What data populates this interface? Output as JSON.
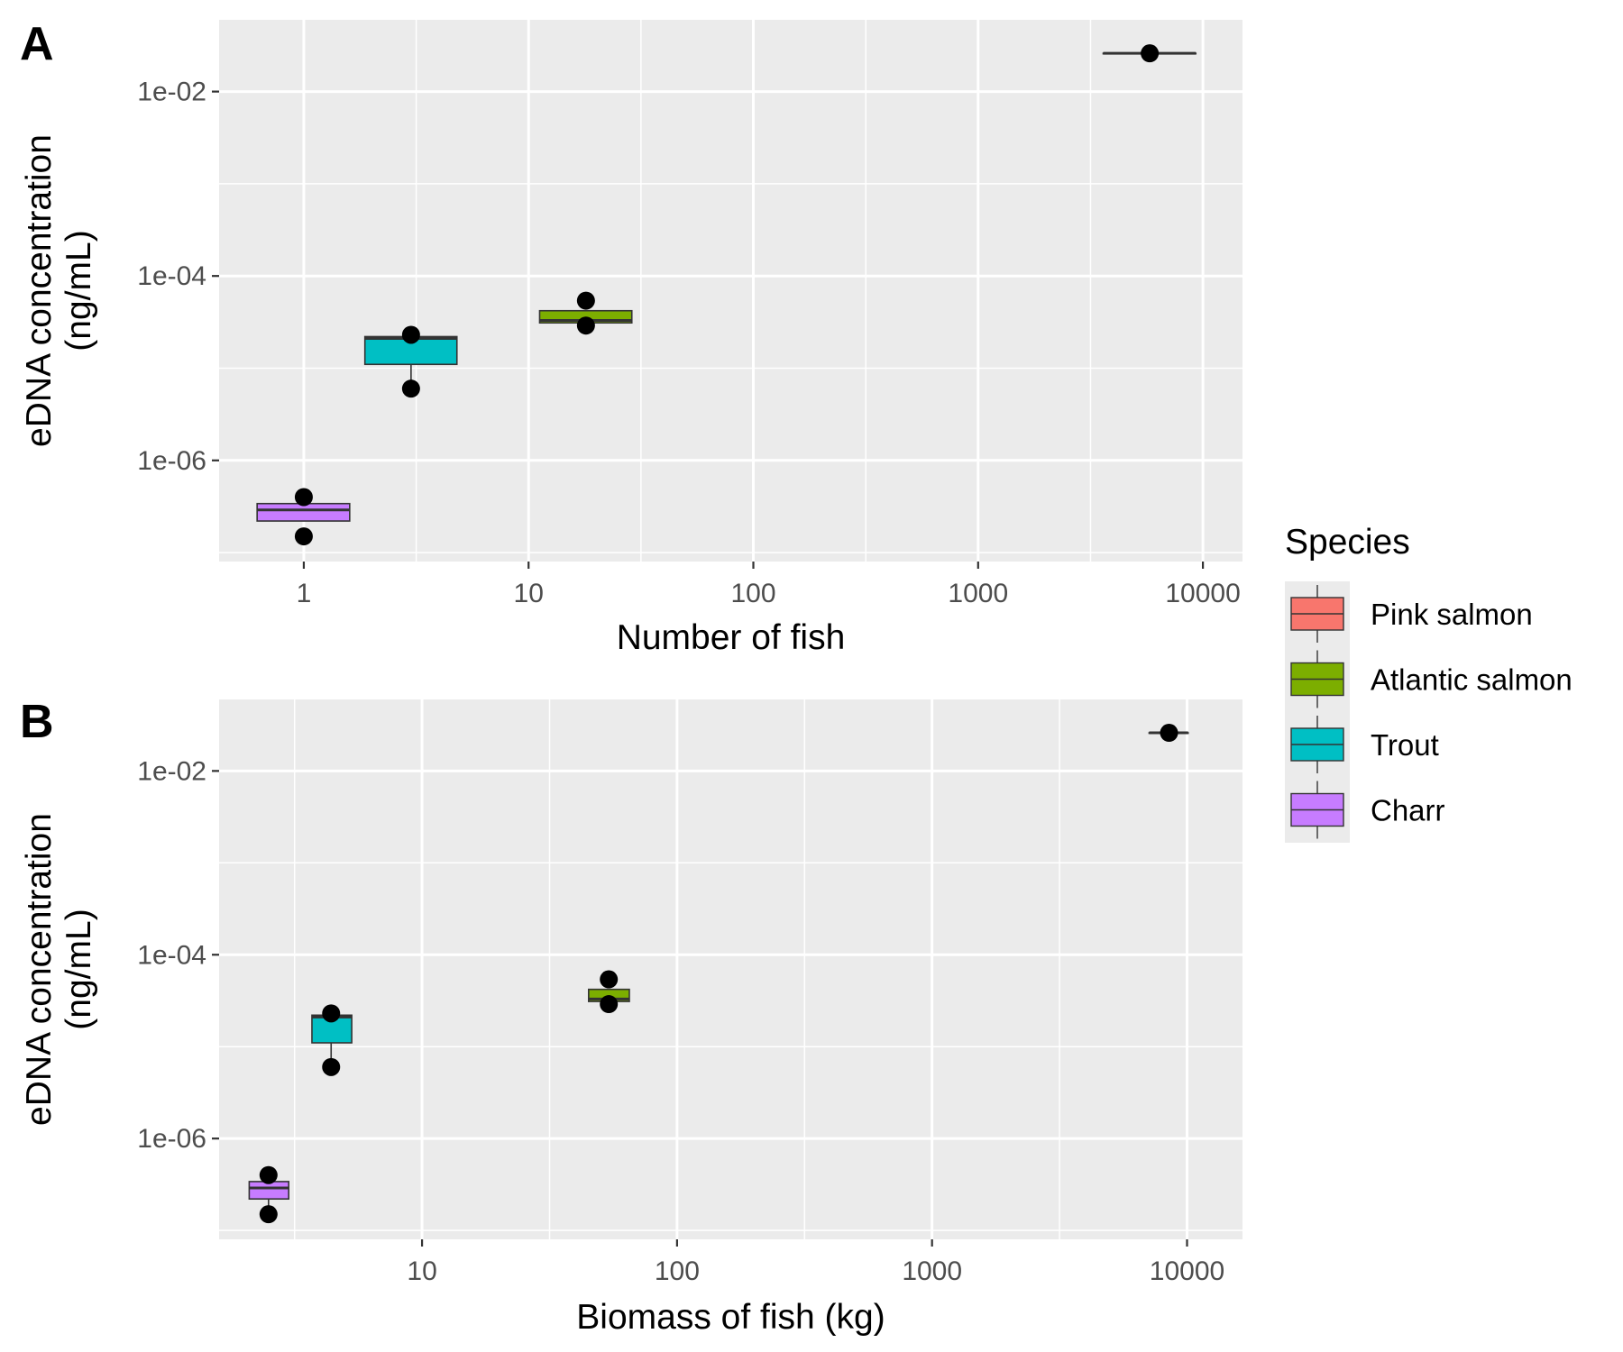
{
  "legend": {
    "title": "Species",
    "colors": {
      "Pink salmon": "#F8766D",
      "Atlantic salmon": "#7CAE00",
      "Trout": "#00BFC4",
      "Charr": "#C77CFF"
    }
  },
  "chart_data": [
    {
      "type": "box",
      "panel_label": "A",
      "xlabel": "Number of fish",
      "ylabel": [
        "eDNA concentration",
        "(ng/mL)"
      ],
      "x_scale": "log10",
      "y_scale": "log10",
      "xlim": [
        0.42,
        15000
      ],
      "ylim": [
        8e-08,
        0.06
      ],
      "x_ticks": [
        {
          "value": 1,
          "label": "1"
        },
        {
          "value": 10,
          "label": "10"
        },
        {
          "value": 100,
          "label": "100"
        },
        {
          "value": 1000,
          "label": "1000"
        },
        {
          "value": 10000,
          "label": "10000"
        }
      ],
      "y_ticks": [
        {
          "value": 1e-06,
          "label": "1e-06"
        },
        {
          "value": 0.0001,
          "label": "1e-04"
        },
        {
          "value": 0.01,
          "label": "1e-02"
        }
      ],
      "grid": true,
      "series": [
        {
          "name": "Charr",
          "x": 1,
          "x_extent": [
            0.62,
            1.6
          ],
          "q1": 2.2e-07,
          "median": 2.9e-07,
          "q3": 3.4e-07,
          "whisker_low": 2.2e-07,
          "whisker_high": 3.4e-07,
          "points": [
            4e-07,
            1.5e-07
          ]
        },
        {
          "name": "Trout",
          "x": 3,
          "x_extent": [
            1.87,
            4.8
          ],
          "q1": 1.1e-05,
          "median": 2.1e-05,
          "q3": 2.2e-05,
          "whisker_low": 6.2e-06,
          "whisker_high": 2.2e-05,
          "points": [
            2.3e-05,
            6e-06
          ]
        },
        {
          "name": "Atlantic salmon",
          "x": 18,
          "x_extent": [
            11.2,
            28.8
          ],
          "q1": 3.1e-05,
          "median": 3.3e-05,
          "q3": 4.2e-05,
          "whisker_low": 3.1e-05,
          "whisker_high": 4.2e-05,
          "points": [
            5.4e-05,
            2.9e-05
          ]
        },
        {
          "name": "Pink salmon",
          "x": 5800,
          "x_extent": [
            3600,
            9300
          ],
          "q1": 0.026,
          "median": 0.026,
          "q3": 0.026,
          "whisker_low": 0.026,
          "whisker_high": 0.026,
          "points": [
            0.026
          ]
        }
      ]
    },
    {
      "type": "box",
      "panel_label": "B",
      "xlabel": "Biomass of fish (kg)",
      "ylabel": [
        "eDNA concentration",
        "(ng/mL)"
      ],
      "x_scale": "log10",
      "y_scale": "log10",
      "xlim": [
        1.6,
        16500
      ],
      "ylim": [
        8e-08,
        0.06
      ],
      "x_ticks": [
        {
          "value": 10,
          "label": "10"
        },
        {
          "value": 100,
          "label": "100"
        },
        {
          "value": 1000,
          "label": "1000"
        },
        {
          "value": 10000,
          "label": "10000"
        }
      ],
      "y_ticks": [
        {
          "value": 1e-06,
          "label": "1e-06"
        },
        {
          "value": 0.0001,
          "label": "1e-04"
        },
        {
          "value": 0.01,
          "label": "1e-02"
        }
      ],
      "grid": true,
      "series": [
        {
          "name": "Charr",
          "x": 2.5,
          "x_extent": [
            2.1,
            3.0
          ],
          "q1": 2.2e-07,
          "median": 2.9e-07,
          "q3": 3.4e-07,
          "whisker_low": 1.8e-07,
          "whisker_high": 3.4e-07,
          "points": [
            4e-07,
            1.5e-07
          ]
        },
        {
          "name": "Trout",
          "x": 4.4,
          "x_extent": [
            3.7,
            5.3
          ],
          "q1": 1.1e-05,
          "median": 2.1e-05,
          "q3": 2.2e-05,
          "whisker_low": 6.2e-06,
          "whisker_high": 2.2e-05,
          "points": [
            2.3e-05,
            6e-06
          ]
        },
        {
          "name": "Atlantic salmon",
          "x": 54,
          "x_extent": [
            45,
            65
          ],
          "q1": 3.1e-05,
          "median": 3.3e-05,
          "q3": 4.2e-05,
          "whisker_low": 3.1e-05,
          "whisker_high": 4.2e-05,
          "points": [
            5.4e-05,
            2.9e-05
          ]
        },
        {
          "name": "Pink salmon",
          "x": 8500,
          "x_extent": [
            7100,
            10100
          ],
          "q1": 0.026,
          "median": 0.026,
          "q3": 0.026,
          "whisker_low": 0.026,
          "whisker_high": 0.026,
          "points": [
            0.026
          ]
        }
      ]
    }
  ]
}
